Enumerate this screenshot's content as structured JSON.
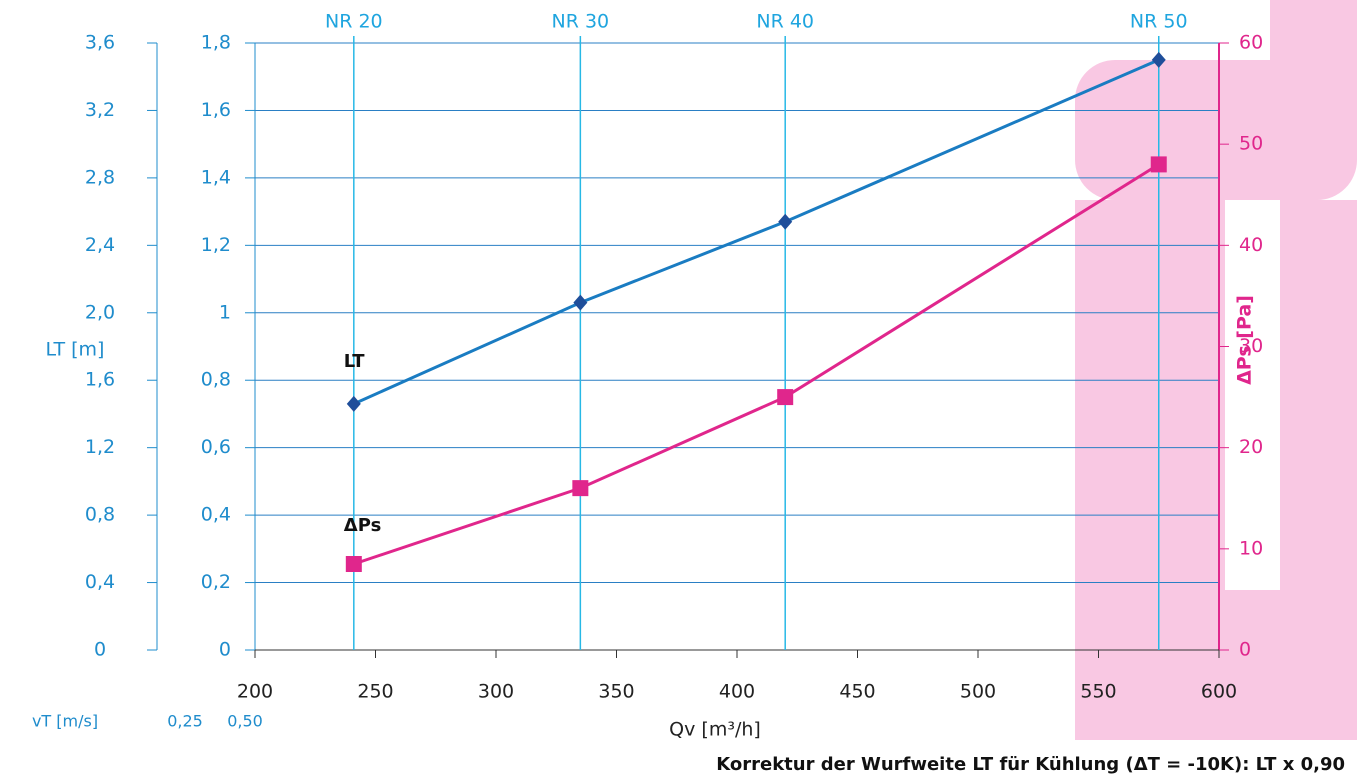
{
  "chart_data": {
    "type": "line",
    "x_label": "Qv [m³/h]",
    "xlim": [
      200,
      600
    ],
    "xticks": [
      200,
      250,
      300,
      350,
      400,
      450,
      500,
      550,
      600
    ],
    "ylim": [
      0,
      1.8
    ],
    "yticks": [
      0,
      {
        "value": 0.2,
        "label": "0,2"
      },
      {
        "value": 0.4,
        "label": "0,4"
      },
      {
        "value": 0.6,
        "label": "0,6"
      },
      {
        "value": 0.8,
        "label": "0,8"
      },
      1,
      {
        "value": 1.2,
        "label": "1,2"
      },
      {
        "value": 1.4,
        "label": "1,4"
      },
      {
        "value": 1.6,
        "label": "1,6"
      },
      {
        "value": 1.8,
        "label": "1,8"
      }
    ],
    "lt_axis": {
      "label": "LT [m]",
      "lim": [
        0,
        3.6
      ],
      "ticks": [
        0,
        {
          "value": 0.4,
          "label": "0,4"
        },
        {
          "value": 0.8,
          "label": "0,8"
        },
        {
          "value": 1.2,
          "label": "1,2"
        },
        {
          "value": 1.6,
          "label": "1,6"
        },
        {
          "value": 2.0,
          "label": "2,0"
        },
        {
          "value": 2.4,
          "label": "2,4"
        },
        {
          "value": 2.8,
          "label": "2,8"
        },
        {
          "value": 3.2,
          "label": "3,2"
        },
        {
          "value": 3.6,
          "label": "3,6"
        }
      ]
    },
    "y2_label": "ΔPs [Pa]",
    "y2lim": [
      0,
      60
    ],
    "y2ticks": [
      0,
      10,
      20,
      30,
      40,
      50,
      60
    ],
    "grid": true,
    "nr_lines": [
      {
        "label": "NR 20",
        "x": 241
      },
      {
        "label": "NR 30",
        "x": 335
      },
      {
        "label": "NR 40",
        "x": 420
      },
      {
        "label": "NR 50",
        "x": 575
      }
    ],
    "series": [
      {
        "name": "LT",
        "color": "#1a7cc2",
        "marker_color": "#1f4e9a",
        "x": [
          241,
          335,
          420,
          575
        ],
        "values": [
          0.73,
          1.03,
          1.27,
          1.75
        ]
      },
      {
        "name": "ΔPs",
        "color": "#e0268c",
        "marker_color": "#e0268c",
        "axis": "y2",
        "x": [
          241,
          335,
          420,
          575
        ],
        "values": [
          8.5,
          16,
          25,
          48
        ]
      }
    ],
    "velocity": {
      "label": "vT [m/s]",
      "values": [
        "0,25",
        "0,50"
      ]
    },
    "footnote": "Korrektur der Wurfweite LT für Kühlung (ΔT = -10K): LT x 0,90"
  }
}
